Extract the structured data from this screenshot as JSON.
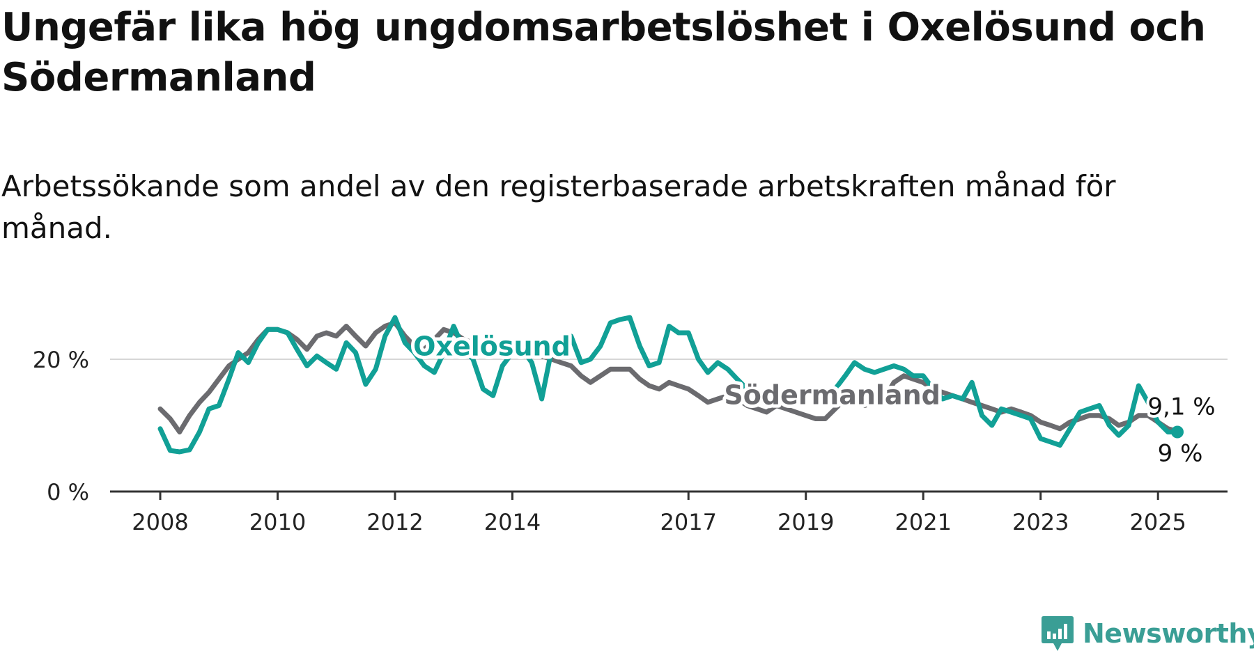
{
  "title": "Ungefär lika hög ungdomsarbetslöshet i Oxelösund och Södermanland",
  "subtitle": "Arbetssökande som andel av den registerbaserade arbetskraften månad för månad.",
  "branding": {
    "name": "Newsworthy",
    "icon": "newsworthy-logo-icon",
    "color": "#3a9e95"
  },
  "chart_data": {
    "type": "line",
    "title": "Ungefär lika hög ungdomsarbetslöshet i Oxelösund och Södermanland",
    "subtitle": "Arbetssökande som andel av den registerbaserade arbetskraften månad för månad.",
    "xlabel": "",
    "ylabel": "",
    "x_range": [
      2008.0,
      2025.33
    ],
    "ylim": [
      0,
      26
    ],
    "y_ticks": [
      0,
      20
    ],
    "y_tick_labels": [
      "0 %",
      "20 %"
    ],
    "x_ticks": [
      2008,
      2010,
      2012,
      2014,
      2017,
      2019,
      2021,
      2023,
      2025
    ],
    "x_tick_labels": [
      "2008",
      "2010",
      "2012",
      "2014",
      "2017",
      "2019",
      "2021",
      "2023",
      "2025"
    ],
    "grid": "horizontal",
    "series": [
      {
        "name": "Oxelösund",
        "color": "#11a096",
        "end_label": "9 %",
        "points": [
          [
            2008.0,
            9.5
          ],
          [
            2008.17,
            6.2
          ],
          [
            2008.33,
            6.0
          ],
          [
            2008.5,
            6.3
          ],
          [
            2008.67,
            9.0
          ],
          [
            2008.83,
            12.5
          ],
          [
            2009.0,
            13.0
          ],
          [
            2009.17,
            17.0
          ],
          [
            2009.33,
            21.0
          ],
          [
            2009.5,
            19.5
          ],
          [
            2009.67,
            22.5
          ],
          [
            2009.83,
            24.5
          ],
          [
            2010.0,
            24.5
          ],
          [
            2010.17,
            24.0
          ],
          [
            2010.33,
            21.5
          ],
          [
            2010.5,
            19.0
          ],
          [
            2010.67,
            20.5
          ],
          [
            2010.83,
            19.5
          ],
          [
            2011.0,
            18.5
          ],
          [
            2011.17,
            22.5
          ],
          [
            2011.33,
            21.0
          ],
          [
            2011.5,
            16.2
          ],
          [
            2011.67,
            18.5
          ],
          [
            2011.83,
            23.5
          ],
          [
            2012.0,
            26.3
          ],
          [
            2012.17,
            22.5
          ],
          [
            2012.33,
            21.0
          ],
          [
            2012.5,
            19.0
          ],
          [
            2012.67,
            18.0
          ],
          [
            2012.83,
            21.0
          ],
          [
            2013.0,
            25.0
          ],
          [
            2013.17,
            21.5
          ],
          [
            2013.33,
            20.0
          ],
          [
            2013.5,
            15.5
          ],
          [
            2013.67,
            14.5
          ],
          [
            2013.83,
            19.0
          ],
          [
            2014.0,
            21.0
          ],
          [
            2014.17,
            21.5
          ],
          [
            2014.33,
            19.5
          ],
          [
            2014.5,
            14.0
          ],
          [
            2014.67,
            21.5
          ],
          [
            2014.83,
            22.5
          ],
          [
            2015.0,
            23.5
          ],
          [
            2015.17,
            19.5
          ],
          [
            2015.33,
            20.0
          ],
          [
            2015.5,
            22.0
          ],
          [
            2015.67,
            25.5
          ],
          [
            2015.83,
            26.0
          ],
          [
            2016.0,
            26.3
          ],
          [
            2016.17,
            22.0
          ],
          [
            2016.33,
            19.0
          ],
          [
            2016.5,
            19.5
          ],
          [
            2016.67,
            25.0
          ],
          [
            2016.83,
            24.0
          ],
          [
            2017.0,
            24.0
          ],
          [
            2017.17,
            20.0
          ],
          [
            2017.33,
            18.0
          ],
          [
            2017.5,
            19.5
          ],
          [
            2017.67,
            18.5
          ],
          [
            2017.83,
            17.0
          ],
          [
            2018.0,
            15.5
          ],
          [
            2018.17,
            14.0
          ],
          [
            2018.33,
            14.5
          ],
          [
            2018.5,
            15.0
          ],
          [
            2018.67,
            14.0
          ],
          [
            2018.83,
            15.0
          ],
          [
            2019.0,
            15.5
          ],
          [
            2019.17,
            14.0
          ],
          [
            2019.33,
            13.5
          ],
          [
            2019.5,
            15.5
          ],
          [
            2019.67,
            17.5
          ],
          [
            2019.83,
            19.5
          ],
          [
            2020.0,
            18.5
          ],
          [
            2020.17,
            18.0
          ],
          [
            2020.33,
            18.5
          ],
          [
            2020.5,
            19.0
          ],
          [
            2020.67,
            18.5
          ],
          [
            2020.83,
            17.5
          ],
          [
            2021.0,
            17.5
          ],
          [
            2021.17,
            15.5
          ],
          [
            2021.33,
            14.0
          ],
          [
            2021.5,
            14.5
          ],
          [
            2021.67,
            14.0
          ],
          [
            2021.83,
            16.5
          ],
          [
            2022.0,
            11.5
          ],
          [
            2022.17,
            10.0
          ],
          [
            2022.33,
            12.5
          ],
          [
            2022.5,
            12.0
          ],
          [
            2022.67,
            11.5
          ],
          [
            2022.83,
            11.0
          ],
          [
            2023.0,
            8.0
          ],
          [
            2023.17,
            7.5
          ],
          [
            2023.33,
            7.0
          ],
          [
            2023.5,
            9.5
          ],
          [
            2023.67,
            12.0
          ],
          [
            2023.83,
            12.5
          ],
          [
            2024.0,
            13.0
          ],
          [
            2024.17,
            10.0
          ],
          [
            2024.33,
            8.5
          ],
          [
            2024.5,
            10.0
          ],
          [
            2024.67,
            16.0
          ],
          [
            2024.83,
            13.5
          ],
          [
            2025.0,
            10.5
          ],
          [
            2025.17,
            9.0
          ],
          [
            2025.33,
            9.0
          ]
        ]
      },
      {
        "name": "Södermanland",
        "color": "#6b6b6f",
        "end_label": "9,1 %",
        "points": [
          [
            2008.0,
            12.5
          ],
          [
            2008.17,
            11.0
          ],
          [
            2008.33,
            9.0
          ],
          [
            2008.5,
            11.5
          ],
          [
            2008.67,
            13.5
          ],
          [
            2008.83,
            15.0
          ],
          [
            2009.0,
            17.0
          ],
          [
            2009.17,
            19.0
          ],
          [
            2009.33,
            20.0
          ],
          [
            2009.5,
            21.0
          ],
          [
            2009.67,
            23.0
          ],
          [
            2009.83,
            24.5
          ],
          [
            2010.0,
            24.5
          ],
          [
            2010.17,
            24.0
          ],
          [
            2010.33,
            23.0
          ],
          [
            2010.5,
            21.5
          ],
          [
            2010.67,
            23.5
          ],
          [
            2010.83,
            24.0
          ],
          [
            2011.0,
            23.5
          ],
          [
            2011.17,
            25.0
          ],
          [
            2011.33,
            23.5
          ],
          [
            2011.5,
            22.0
          ],
          [
            2011.67,
            24.0
          ],
          [
            2011.83,
            25.0
          ],
          [
            2012.0,
            25.5
          ],
          [
            2012.17,
            23.5
          ],
          [
            2012.33,
            22.0
          ],
          [
            2012.5,
            21.5
          ],
          [
            2012.67,
            23.0
          ],
          [
            2012.83,
            24.5
          ],
          [
            2013.0,
            24.0
          ],
          [
            2013.17,
            23.0
          ],
          [
            2013.33,
            22.5
          ],
          [
            2013.5,
            21.5
          ],
          [
            2013.67,
            22.5
          ],
          [
            2013.83,
            22.0
          ],
          [
            2014.0,
            22.5
          ],
          [
            2014.17,
            22.0
          ],
          [
            2014.33,
            21.5
          ],
          [
            2014.5,
            20.5
          ],
          [
            2014.67,
            20.0
          ],
          [
            2014.83,
            19.5
          ],
          [
            2015.0,
            19.0
          ],
          [
            2015.17,
            17.5
          ],
          [
            2015.33,
            16.5
          ],
          [
            2015.5,
            17.5
          ],
          [
            2015.67,
            18.5
          ],
          [
            2015.83,
            18.5
          ],
          [
            2016.0,
            18.5
          ],
          [
            2016.17,
            17.0
          ],
          [
            2016.33,
            16.0
          ],
          [
            2016.5,
            15.5
          ],
          [
            2016.67,
            16.5
          ],
          [
            2016.83,
            16.0
          ],
          [
            2017.0,
            15.5
          ],
          [
            2017.17,
            14.5
          ],
          [
            2017.33,
            13.5
          ],
          [
            2017.5,
            14.0
          ],
          [
            2017.67,
            14.5
          ],
          [
            2017.83,
            14.0
          ],
          [
            2018.0,
            13.0
          ],
          [
            2018.17,
            12.5
          ],
          [
            2018.33,
            12.0
          ],
          [
            2018.5,
            13.0
          ],
          [
            2018.67,
            12.5
          ],
          [
            2018.83,
            12.0
          ],
          [
            2019.0,
            11.5
          ],
          [
            2019.17,
            11.0
          ],
          [
            2019.33,
            11.0
          ],
          [
            2019.5,
            12.5
          ],
          [
            2019.67,
            14.0
          ],
          [
            2019.83,
            14.0
          ],
          [
            2020.0,
            13.0
          ],
          [
            2020.17,
            13.5
          ],
          [
            2020.33,
            14.0
          ],
          [
            2020.5,
            16.5
          ],
          [
            2020.67,
            17.5
          ],
          [
            2020.83,
            17.0
          ],
          [
            2021.0,
            16.5
          ],
          [
            2021.17,
            15.5
          ],
          [
            2021.33,
            15.0
          ],
          [
            2021.5,
            14.5
          ],
          [
            2021.67,
            14.0
          ],
          [
            2021.83,
            13.5
          ],
          [
            2022.0,
            13.0
          ],
          [
            2022.17,
            12.5
          ],
          [
            2022.33,
            12.0
          ],
          [
            2022.5,
            12.5
          ],
          [
            2022.67,
            12.0
          ],
          [
            2022.83,
            11.5
          ],
          [
            2023.0,
            10.5
          ],
          [
            2023.17,
            10.0
          ],
          [
            2023.33,
            9.5
          ],
          [
            2023.5,
            10.5
          ],
          [
            2023.67,
            11.0
          ],
          [
            2023.83,
            11.5
          ],
          [
            2024.0,
            11.5
          ],
          [
            2024.17,
            11.0
          ],
          [
            2024.33,
            10.0
          ],
          [
            2024.5,
            10.5
          ],
          [
            2024.67,
            11.5
          ],
          [
            2024.83,
            11.5
          ],
          [
            2025.0,
            10.5
          ],
          [
            2025.17,
            9.5
          ],
          [
            2025.33,
            9.1
          ]
        ]
      }
    ],
    "series_labels": [
      {
        "series": "Oxelösund",
        "text": "Oxelösund",
        "x": 2013.65,
        "y": 20.6
      },
      {
        "series": "Södermanland",
        "text": "Södermanland",
        "x": 2019.45,
        "y": 13.2
      }
    ]
  }
}
